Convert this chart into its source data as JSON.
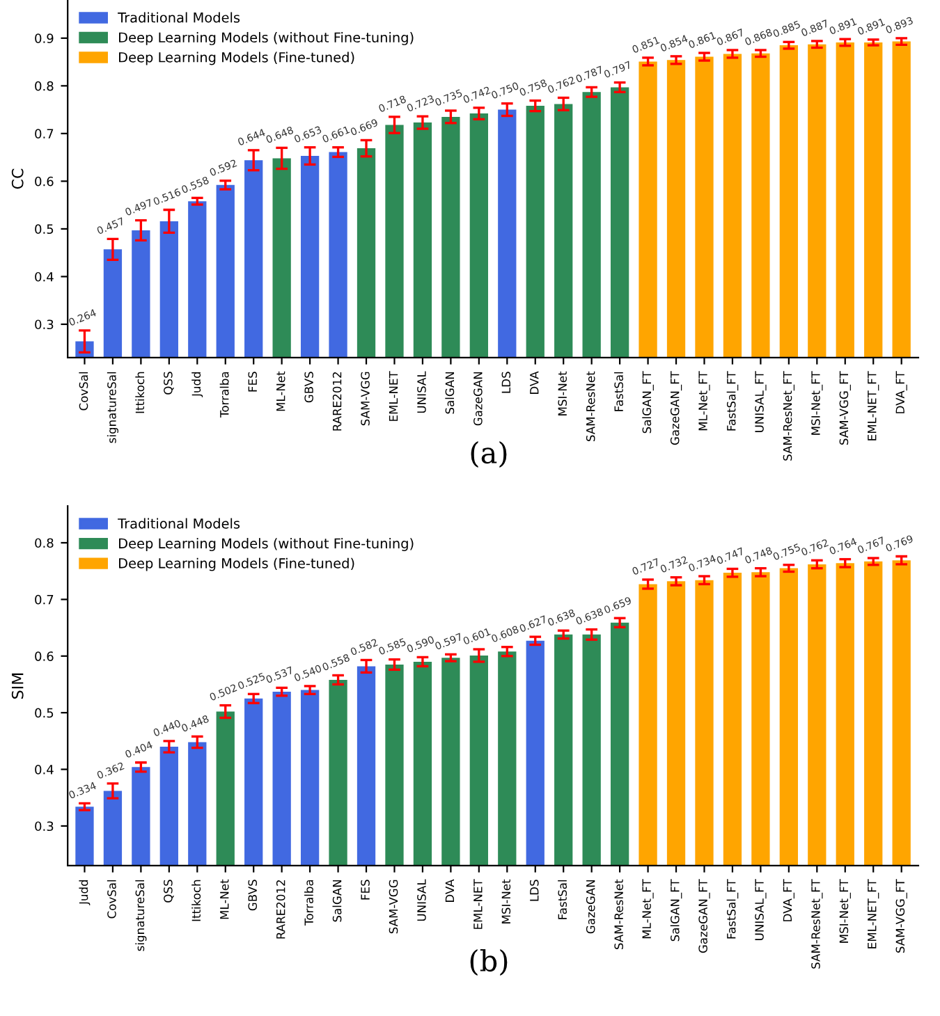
{
  "chart_data": [
    {
      "type": "bar",
      "ylabel": "CC",
      "ylim": [
        0.23,
        0.98
      ],
      "yticks": [
        0.3,
        0.4,
        0.5,
        0.6,
        0.7,
        0.8,
        0.9
      ],
      "grid": false,
      "legend": "top left",
      "annotations": [
        "(a)"
      ],
      "categories": [
        "CovSal",
        "signatureSal",
        "Ittikoch",
        "QSS",
        "Judd",
        "Torralba",
        "FES",
        "ML-Net",
        "GBVS",
        "RARE2012",
        "SAM-VGG",
        "EML-NET",
        "UNISAL",
        "SalGAN",
        "GazeGAN",
        "LDS",
        "DVA",
        "MSI-Net",
        "SAM-ResNet",
        "FastSal",
        "SalGAN_FT",
        "GazeGAN_FT",
        "ML-Net_FT",
        "FastSal_FT",
        "UNISAL_FT",
        "SAM-ResNet_FT",
        "MSI-Net_FT",
        "SAM-VGG_FT",
        "EML-NET_FT",
        "DVA_FT"
      ],
      "series": [
        {
          "name": "Traditional Models",
          "color": "#4169e1",
          "values": [
            0.264,
            0.457,
            0.497,
            0.516,
            0.558,
            0.592,
            0.644,
            null,
            0.653,
            0.661,
            null,
            null,
            null,
            null,
            null,
            0.75,
            null,
            null,
            null,
            null,
            null,
            null,
            null,
            null,
            null,
            null,
            null,
            null,
            null,
            null
          ],
          "errors": [
            0.023,
            0.022,
            0.021,
            0.024,
            0.007,
            0.009,
            0.021,
            null,
            0.018,
            0.01,
            null,
            null,
            null,
            null,
            null,
            0.013,
            null,
            null,
            null,
            null,
            null,
            null,
            null,
            null,
            null,
            null,
            null,
            null,
            null,
            null
          ],
          "value_labels": [
            "0.264",
            "0.457",
            "0.497",
            "0.516",
            "0.558",
            "0.592",
            "0.644",
            null,
            "0.653",
            "0.661",
            null,
            null,
            null,
            null,
            null,
            "0.750",
            null,
            null,
            null,
            null,
            null,
            null,
            null,
            null,
            null,
            null,
            null,
            null,
            null,
            null
          ]
        },
        {
          "name": "Deep Learning Models (without Fine-tuning)",
          "color": "#2e8b57",
          "values": [
            null,
            null,
            null,
            null,
            null,
            null,
            null,
            0.648,
            null,
            null,
            0.669,
            0.718,
            0.723,
            0.735,
            0.742,
            null,
            0.758,
            0.762,
            0.787,
            0.797,
            null,
            null,
            null,
            null,
            null,
            null,
            null,
            null,
            null,
            null
          ],
          "errors": [
            null,
            null,
            null,
            null,
            null,
            null,
            null,
            0.022,
            null,
            null,
            0.017,
            0.017,
            0.013,
            0.013,
            0.012,
            null,
            0.011,
            0.013,
            0.01,
            0.01,
            null,
            null,
            null,
            null,
            null,
            null,
            null,
            null,
            null,
            null
          ],
          "value_labels": [
            null,
            null,
            null,
            null,
            null,
            null,
            null,
            "0.648",
            null,
            null,
            "0.669",
            "0.718",
            "0.723",
            "0.735",
            "0.742",
            null,
            "0.758",
            "0.762",
            "0.787",
            "0.797",
            null,
            null,
            null,
            null,
            null,
            null,
            null,
            null,
            null,
            null
          ]
        },
        {
          "name": "Deep Learning Models (Fine-tuned)",
          "color": "#ffa500",
          "values": [
            null,
            null,
            null,
            null,
            null,
            null,
            null,
            null,
            null,
            null,
            null,
            null,
            null,
            null,
            null,
            null,
            null,
            null,
            null,
            null,
            0.851,
            0.854,
            0.861,
            0.867,
            0.868,
            0.885,
            0.887,
            0.891,
            0.891,
            0.893
          ],
          "errors": [
            null,
            null,
            null,
            null,
            null,
            null,
            null,
            null,
            null,
            null,
            null,
            null,
            null,
            null,
            null,
            null,
            null,
            null,
            null,
            null,
            0.008,
            0.008,
            0.008,
            0.008,
            0.007,
            0.007,
            0.007,
            0.007,
            0.006,
            0.007
          ],
          "value_labels": [
            null,
            null,
            null,
            null,
            null,
            null,
            null,
            null,
            null,
            null,
            null,
            null,
            null,
            null,
            null,
            null,
            null,
            null,
            null,
            null,
            "0.851",
            "0.854",
            "0.861",
            "0.867",
            "0.868",
            "0.885",
            "0.887",
            "0.891",
            "0.891",
            "0.893"
          ]
        }
      ]
    },
    {
      "type": "bar",
      "ylabel": "SIM",
      "ylim": [
        0.23,
        0.865
      ],
      "yticks": [
        0.3,
        0.4,
        0.5,
        0.6,
        0.7,
        0.8
      ],
      "grid": false,
      "legend": "top left",
      "annotations": [
        "(b)"
      ],
      "categories": [
        "Judd",
        "CovSal",
        "signatureSal",
        "QSS",
        "Ittikoch",
        "ML-Net",
        "GBVS",
        "RARE2012",
        "Torralba",
        "SalGAN",
        "FES",
        "SAM-VGG",
        "UNISAL",
        "DVA",
        "EML-NET",
        "MSI-Net",
        "LDS",
        "FastSal",
        "GazeGAN",
        "SAM-ResNet",
        "ML-Net_FT",
        "SalGAN_FT",
        "GazeGAN_FT",
        "FastSal_FT",
        "UNISAL_FT",
        "DVA_FT",
        "SAM-ResNet_FT",
        "MSI-Net_FT",
        "EML-NET_FT",
        "SAM-VGG_FT"
      ],
      "series": [
        {
          "name": "Traditional Models",
          "color": "#4169e1",
          "values": [
            0.334,
            0.362,
            0.404,
            0.44,
            0.448,
            null,
            0.525,
            0.537,
            0.54,
            null,
            0.582,
            null,
            null,
            null,
            null,
            null,
            0.627,
            null,
            null,
            null,
            null,
            null,
            null,
            null,
            null,
            null,
            null,
            null,
            null,
            null
          ],
          "errors": [
            0.006,
            0.013,
            0.008,
            0.01,
            0.01,
            null,
            0.008,
            0.007,
            0.007,
            null,
            0.011,
            null,
            null,
            null,
            null,
            null,
            0.007,
            null,
            null,
            null,
            null,
            null,
            null,
            null,
            null,
            null,
            null,
            null,
            null,
            null
          ],
          "value_labels": [
            "0.334",
            "0.362",
            "0.404",
            "0.440",
            "0.448",
            null,
            "0.525",
            "0.537",
            "0.540",
            null,
            "0.582",
            null,
            null,
            null,
            null,
            null,
            "0.627",
            null,
            null,
            null,
            null,
            null,
            null,
            null,
            null,
            null,
            null,
            null,
            null,
            null
          ]
        },
        {
          "name": "Deep Learning Models (without Fine-tuning)",
          "color": "#2e8b57",
          "values": [
            null,
            null,
            null,
            null,
            null,
            0.502,
            null,
            null,
            null,
            0.558,
            null,
            0.585,
            0.59,
            0.597,
            0.601,
            0.608,
            null,
            0.638,
            0.638,
            0.659,
            null,
            null,
            null,
            null,
            null,
            null,
            null,
            null,
            null,
            null
          ],
          "errors": [
            null,
            null,
            null,
            null,
            null,
            0.011,
            null,
            null,
            null,
            0.008,
            null,
            0.009,
            0.008,
            0.006,
            0.011,
            0.008,
            null,
            0.007,
            0.009,
            0.008,
            null,
            null,
            null,
            null,
            null,
            null,
            null,
            null,
            null,
            null
          ],
          "value_labels": [
            null,
            null,
            null,
            null,
            null,
            "0.502",
            null,
            null,
            null,
            "0.558",
            null,
            "0.585",
            "0.590",
            "0.597",
            "0.601",
            "0.608",
            null,
            "0.638",
            "0.638",
            "0.659",
            null,
            null,
            null,
            null,
            null,
            null,
            null,
            null,
            null,
            null
          ]
        },
        {
          "name": "Deep Learning Models (Fine-tuned)",
          "color": "#ffa500",
          "values": [
            null,
            null,
            null,
            null,
            null,
            null,
            null,
            null,
            null,
            null,
            null,
            null,
            null,
            null,
            null,
            null,
            null,
            null,
            null,
            null,
            0.727,
            0.732,
            0.734,
            0.747,
            0.748,
            0.755,
            0.762,
            0.764,
            0.767,
            0.769
          ],
          "errors": [
            null,
            null,
            null,
            null,
            null,
            null,
            null,
            null,
            null,
            null,
            null,
            null,
            null,
            null,
            null,
            null,
            null,
            null,
            null,
            null,
            0.008,
            0.007,
            0.007,
            0.007,
            0.007,
            0.006,
            0.007,
            0.007,
            0.006,
            0.007
          ],
          "value_labels": [
            null,
            null,
            null,
            null,
            null,
            null,
            null,
            null,
            null,
            null,
            null,
            null,
            null,
            null,
            null,
            null,
            null,
            null,
            null,
            null,
            "0.727",
            "0.732",
            "0.734",
            "0.747",
            "0.748",
            "0.755",
            "0.762",
            "0.764",
            "0.767",
            "0.769"
          ]
        }
      ]
    }
  ]
}
